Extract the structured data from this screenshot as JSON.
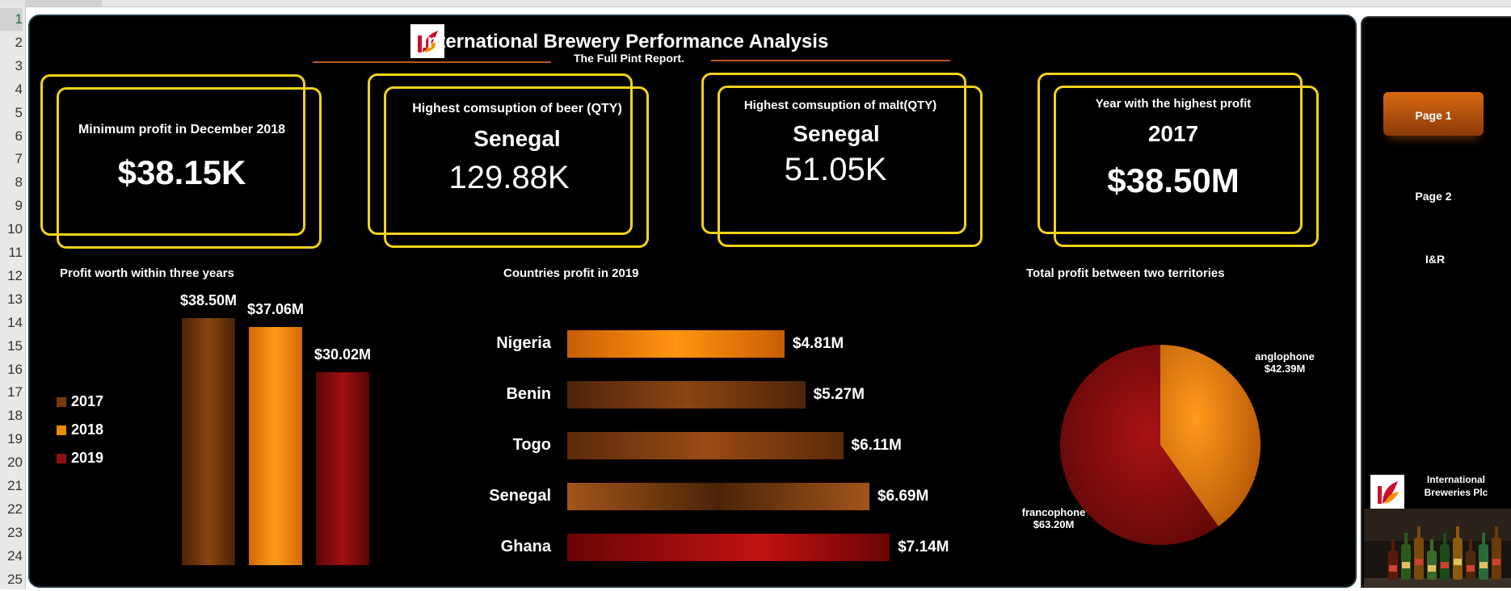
{
  "row_numbers": [
    "1",
    "2",
    "3",
    "4",
    "5",
    "6",
    "7",
    "8",
    "9",
    "10",
    "11",
    "12",
    "13",
    "14",
    "15",
    "16",
    "17",
    "18",
    "19",
    "20",
    "21",
    "22",
    "23",
    "24",
    "25"
  ],
  "header": {
    "title": "International Brewery Performance Analysis",
    "subtitle": "The Full Pint Report."
  },
  "kpis": {
    "min_profit_label": "Minimum profit in December 2018",
    "min_profit_value": "$38.15K",
    "beer_label": "Highest comsuption of beer (QTY)",
    "beer_country": "Senegal",
    "beer_value": "129.88K",
    "malt_label": "Highest comsuption of malt(QTY)",
    "malt_country": "Senegal",
    "malt_value": "51.05K",
    "year_label": "Year with the highest profit",
    "year_value": "2017",
    "year_profit": "$38.50M"
  },
  "chart_data": [
    {
      "type": "bar",
      "title": "Profit worth within three years",
      "categories": [
        "2017",
        "2018",
        "2019"
      ],
      "values": [
        38.5,
        37.06,
        30.02
      ],
      "value_labels": [
        "$38.50M",
        "$37.06M",
        "$30.02M"
      ],
      "ylim": [
        0,
        40
      ],
      "legend": "left",
      "colors": [
        "#7a3a0c",
        "#f08a0a",
        "#8e0f0f"
      ]
    },
    {
      "type": "bar",
      "orientation": "horizontal",
      "title": "Countries profit in 2019",
      "categories": [
        "Nigeria",
        "Benin",
        "Togo",
        "Senegal",
        "Ghana"
      ],
      "values": [
        4.81,
        5.27,
        6.11,
        6.69,
        7.14
      ],
      "value_labels": [
        "$4.81M",
        "$5.27M",
        "$6.11M",
        "$6.69M",
        "$7.14M"
      ],
      "xlim": [
        0,
        7.8
      ],
      "colors": [
        "#f08a0a",
        "#7a3a0c",
        "#8a4010",
        "#a2541a",
        "#a10c0c"
      ]
    },
    {
      "type": "pie",
      "title": "Total profit between two territories",
      "categories": [
        "anglophone",
        "francophone"
      ],
      "values": [
        42.39,
        63.2
      ],
      "value_labels": [
        "$42.39M",
        "$63.20M"
      ],
      "colors": [
        "#f08a0a",
        "#8e0f0f"
      ]
    }
  ],
  "nav": {
    "page1": "Page 1",
    "page2": "Page 2",
    "ir": "I&R",
    "company": "International Breweries Plc"
  }
}
